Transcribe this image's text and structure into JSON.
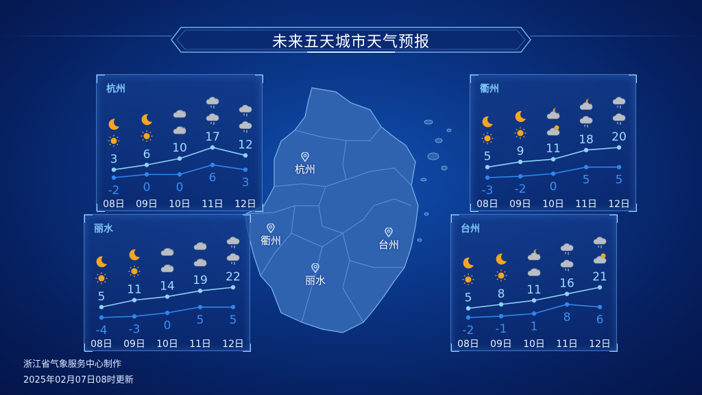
{
  "title": "未来五天城市天气预报",
  "colors": {
    "high_line": "#8fd3f7",
    "low_line": "#2f86ee",
    "high_text": "#9fdcff",
    "low_text": "#3b8ff0",
    "panel_title": "#7cc4f5",
    "map_fill": "#2f63b0"
  },
  "map_labels": [
    "杭州",
    "衢州",
    "台州",
    "丽水"
  ],
  "panels": [
    {
      "city": "杭州",
      "dates": [
        "08日",
        "09日",
        "10日",
        "11日",
        "12日"
      ],
      "high": [
        3,
        6,
        10,
        17,
        12
      ],
      "low": [
        -2,
        0,
        0,
        6,
        3
      ],
      "night_icons": [
        "moon",
        "moon",
        "cloudy",
        "light-rain",
        "light-rain"
      ],
      "day_icons": [
        "sunny",
        "sunny",
        "cloudy",
        "light-rain",
        "light-rain"
      ]
    },
    {
      "city": "衢州",
      "dates": [
        "08日",
        "09日",
        "10日",
        "11日",
        "12日"
      ],
      "high": [
        5,
        9,
        11,
        18,
        20
      ],
      "low": [
        -3,
        -2,
        0,
        5,
        5
      ],
      "night_icons": [
        "moon",
        "moon",
        "partly-cloudy-night",
        "partly-cloudy-night",
        "light-rain"
      ],
      "day_icons": [
        "sunny",
        "sunny",
        "partly-cloudy",
        "light-rain",
        "light-rain"
      ]
    },
    {
      "city": "丽水",
      "dates": [
        "08日",
        "09日",
        "10日",
        "11日",
        "12日"
      ],
      "high": [
        5,
        11,
        14,
        19,
        22
      ],
      "low": [
        -4,
        -3,
        0,
        5,
        5
      ],
      "night_icons": [
        "moon",
        "moon",
        "cloudy",
        "cloudy",
        "light-rain"
      ],
      "day_icons": [
        "sunny",
        "sunny",
        "cloudy",
        "cloudy",
        "light-rain"
      ]
    },
    {
      "city": "台州",
      "dates": [
        "08日",
        "09日",
        "10日",
        "11日",
        "12日"
      ],
      "high": [
        5,
        8,
        11,
        16,
        21
      ],
      "low": [
        -2,
        -1,
        1,
        8,
        6
      ],
      "night_icons": [
        "moon",
        "moon",
        "partly-cloudy-night",
        "light-rain",
        "light-rain"
      ],
      "day_icons": [
        "sunny",
        "sunny",
        "cloudy",
        "light-rain",
        "partly-cloudy"
      ]
    }
  ],
  "footer": {
    "source": "浙江省气象服务中心制作",
    "updated": "2025年02月07日08时更新"
  }
}
